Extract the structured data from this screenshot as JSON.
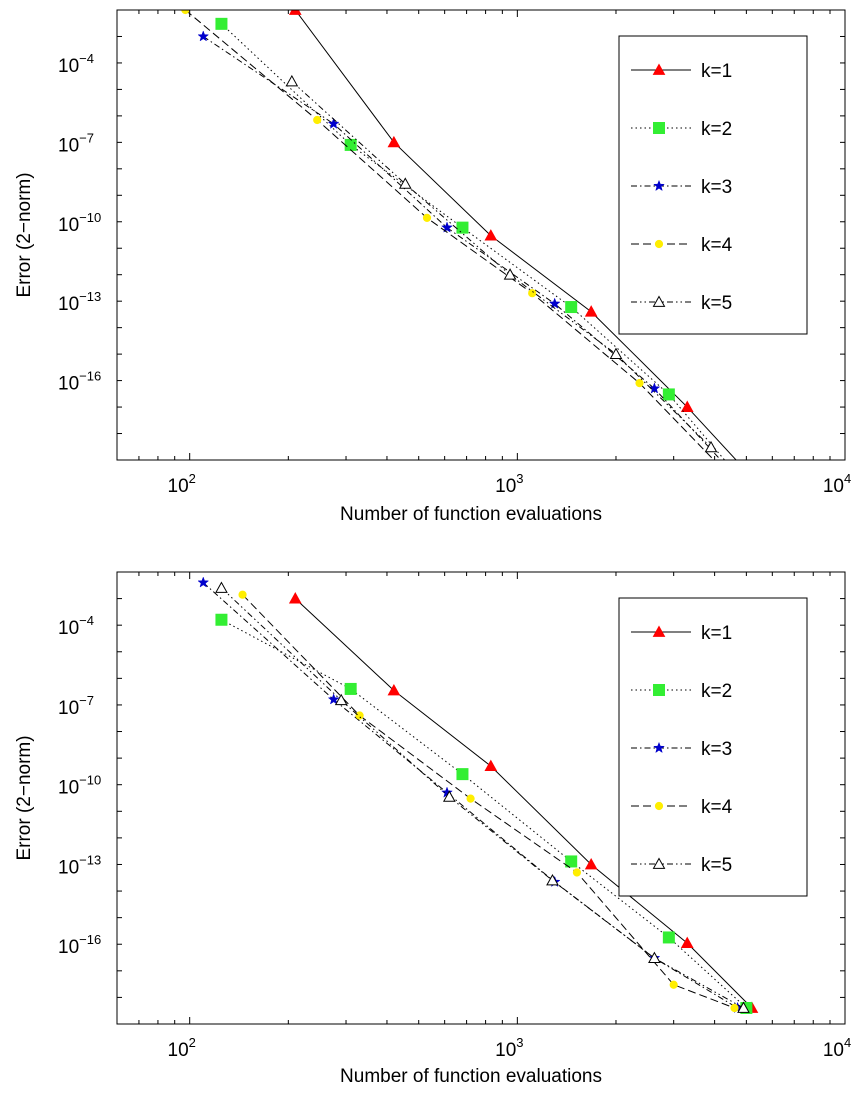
{
  "chart_data": [
    {
      "type": "line",
      "xlabel": "Number of function evaluations",
      "ylabel": "Error (2−norm)",
      "xscale": "log",
      "yscale": "log",
      "xlim": [
        60,
        10000
      ],
      "ylim": [
        1e-19,
        0.01
      ],
      "x_ticks": [
        {
          "value": 100,
          "base": "10",
          "exp": "2"
        },
        {
          "value": 1000,
          "base": "10",
          "exp": "3"
        },
        {
          "value": 10000,
          "base": "10",
          "exp": "4"
        }
      ],
      "y_ticks": [
        {
          "value": 0.0001,
          "base": "10",
          "exp": "−4"
        },
        {
          "value": 1e-07,
          "base": "10",
          "exp": "−7"
        },
        {
          "value": 1e-10,
          "base": "10",
          "exp": "−10"
        },
        {
          "value": 1e-13,
          "base": "10",
          "exp": "−13"
        },
        {
          "value": 1e-16,
          "base": "10",
          "exp": "−16"
        }
      ],
      "grid": false,
      "legend_position": "top-right",
      "series": [
        {
          "name": "k=1",
          "color": "#ff0000",
          "marker": "triangle-filled",
          "line": "solid",
          "x": [
            210,
            420,
            830,
            1680,
            3300,
            4900
          ],
          "y": [
            0.01,
            1e-07,
            3e-11,
            4e-14,
            1e-17,
            5e-20
          ]
        },
        {
          "name": "k=2",
          "color": "#33ee33",
          "marker": "square",
          "line": "dotted",
          "x": [
            125,
            310,
            680,
            1460,
            2900,
            4500
          ],
          "y": [
            0.003,
            8e-08,
            6e-11,
            6e-14,
            3e-17,
            5e-20
          ]
        },
        {
          "name": "k=3",
          "color": "#0000cc",
          "marker": "star",
          "line": "dashdot",
          "x": [
            110,
            275,
            610,
            1300,
            2620,
            4400
          ],
          "y": [
            0.001,
            5e-07,
            6e-11,
            8e-14,
            5e-17,
            5e-20
          ]
        },
        {
          "name": "k=4",
          "color": "#ffee00",
          "marker": "dot",
          "line": "dashed",
          "x": [
            97,
            245,
            530,
            1110,
            2360,
            4200
          ],
          "y": [
            0.01,
            7e-07,
            1.4e-10,
            2e-13,
            8e-17,
            5e-20
          ]
        },
        {
          "name": "k=5",
          "color": "#ffffff",
          "marker": "triangle-open",
          "line": "dashdotdot",
          "x": [
            205,
            455,
            950,
            2000,
            3900
          ],
          "y": [
            2e-05,
            2.7e-09,
            1e-12,
            1e-15,
            3e-19
          ]
        }
      ]
    },
    {
      "type": "line",
      "xlabel": "Number of function evaluations",
      "ylabel": "Error (2−norm)",
      "xscale": "log",
      "yscale": "log",
      "xlim": [
        60,
        10000
      ],
      "ylim": [
        1e-19,
        0.01
      ],
      "x_ticks": [
        {
          "value": 100,
          "base": "10",
          "exp": "2"
        },
        {
          "value": 1000,
          "base": "10",
          "exp": "3"
        },
        {
          "value": 10000,
          "base": "10",
          "exp": "4"
        }
      ],
      "y_ticks": [
        {
          "value": 0.0001,
          "base": "10",
          "exp": "−4"
        },
        {
          "value": 1e-07,
          "base": "10",
          "exp": "−7"
        },
        {
          "value": 1e-10,
          "base": "10",
          "exp": "−10"
        },
        {
          "value": 1e-13,
          "base": "10",
          "exp": "−13"
        },
        {
          "value": 1e-16,
          "base": "10",
          "exp": "−16"
        }
      ],
      "grid": false,
      "legend_position": "top-right",
      "series": [
        {
          "name": "k=1",
          "color": "#ff0000",
          "marker": "triangle-filled",
          "line": "solid",
          "x": [
            210,
            420,
            830,
            1680,
            3300,
            5200
          ],
          "y": [
            0.001,
            3.5e-07,
            5e-10,
            1e-13,
            1.1e-16,
            4e-19
          ]
        },
        {
          "name": "k=2",
          "color": "#33ee33",
          "marker": "square",
          "line": "dotted",
          "x": [
            125,
            310,
            680,
            1460,
            2900,
            5000
          ],
          "y": [
            0.00016,
            4e-07,
            2.5e-10,
            1.3e-13,
            1.8e-16,
            4e-19
          ]
        },
        {
          "name": "k=3",
          "color": "#0000cc",
          "marker": "star",
          "line": "dashdot",
          "x": [
            110,
            275,
            610,
            1300,
            2620,
            4700
          ],
          "y": [
            0.004,
            1.6e-07,
            5e-11,
            2.2e-14,
            3e-17,
            4e-19
          ]
        },
        {
          "name": "k=4",
          "color": "#ffee00",
          "marker": "dot",
          "line": "dashed",
          "x": [
            145,
            330,
            720,
            1520,
            3000,
            4600
          ],
          "y": [
            0.0014,
            4e-08,
            3e-11,
            5e-14,
            3e-18,
            4e-19
          ]
        },
        {
          "name": "k=5",
          "color": "#ffffff",
          "marker": "triangle-open",
          "line": "dashdotdot",
          "x": [
            125,
            290,
            620,
            1280,
            2620,
            4900
          ],
          "y": [
            0.0025,
            1.5e-07,
            3.5e-11,
            2.5e-14,
            3e-17,
            4e-19
          ]
        }
      ]
    }
  ]
}
